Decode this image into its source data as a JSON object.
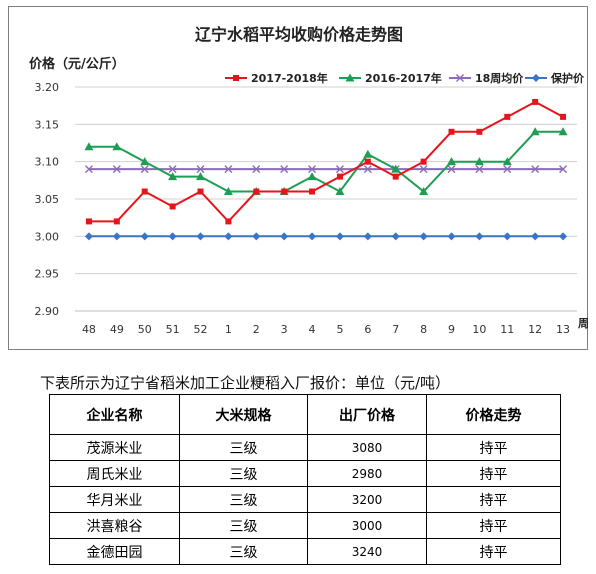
{
  "chart_data": {
    "type": "line",
    "title": "辽宁水稻平均收购价格走势图",
    "ylabel": "价格（元/公斤）",
    "xlabel": "周",
    "categories": [
      "48",
      "49",
      "50",
      "51",
      "52",
      "1",
      "2",
      "3",
      "4",
      "5",
      "6",
      "7",
      "8",
      "9",
      "10",
      "11",
      "12",
      "13"
    ],
    "ylim": [
      2.9,
      3.2
    ],
    "yticks": [
      "2.90",
      "2.95",
      "3.00",
      "3.05",
      "3.10",
      "3.15",
      "3.20"
    ],
    "grid": true,
    "legend_position": "top-right",
    "series": [
      {
        "name": "2017-2018年",
        "color": "#e8141c",
        "marker": "square",
        "values": [
          3.02,
          3.02,
          3.06,
          3.04,
          3.06,
          3.02,
          3.06,
          3.06,
          3.06,
          3.08,
          3.1,
          3.08,
          3.1,
          3.14,
          3.14,
          3.16,
          3.18,
          3.16
        ]
      },
      {
        "name": "2016-2017年",
        "color": "#1e9e52",
        "marker": "triangle",
        "values": [
          3.12,
          3.12,
          3.1,
          3.08,
          3.08,
          3.06,
          3.06,
          3.06,
          3.08,
          3.06,
          3.11,
          3.09,
          3.06,
          3.1,
          3.1,
          3.1,
          3.14,
          3.14
        ]
      },
      {
        "name": "18周均价",
        "color": "#8b6bb8",
        "marker": "x",
        "values": [
          3.09,
          3.09,
          3.09,
          3.09,
          3.09,
          3.09,
          3.09,
          3.09,
          3.09,
          3.09,
          3.09,
          3.09,
          3.09,
          3.09,
          3.09,
          3.09,
          3.09,
          3.09
        ]
      },
      {
        "name": "保护价",
        "color": "#3b74c4",
        "marker": "diamond",
        "values": [
          3.0,
          3.0,
          3.0,
          3.0,
          3.0,
          3.0,
          3.0,
          3.0,
          3.0,
          3.0,
          3.0,
          3.0,
          3.0,
          3.0,
          3.0,
          3.0,
          3.0,
          3.0
        ]
      }
    ]
  },
  "table": {
    "caption": "下表所示为辽宁省稻米加工企业粳稻入厂报价：单位（元/吨）",
    "headers": [
      "企业名称",
      "大米规格",
      "出厂价格",
      "价格走势"
    ],
    "rows": [
      [
        "茂源米业",
        "三级",
        "3080",
        "持平"
      ],
      [
        "周氏米业",
        "三级",
        "2980",
        "持平"
      ],
      [
        "华月米业",
        "三级",
        "3200",
        "持平"
      ],
      [
        "洪喜粮谷",
        "三级",
        "3000",
        "持平"
      ],
      [
        "金德田园",
        "三级",
        "3240",
        "持平"
      ]
    ]
  }
}
